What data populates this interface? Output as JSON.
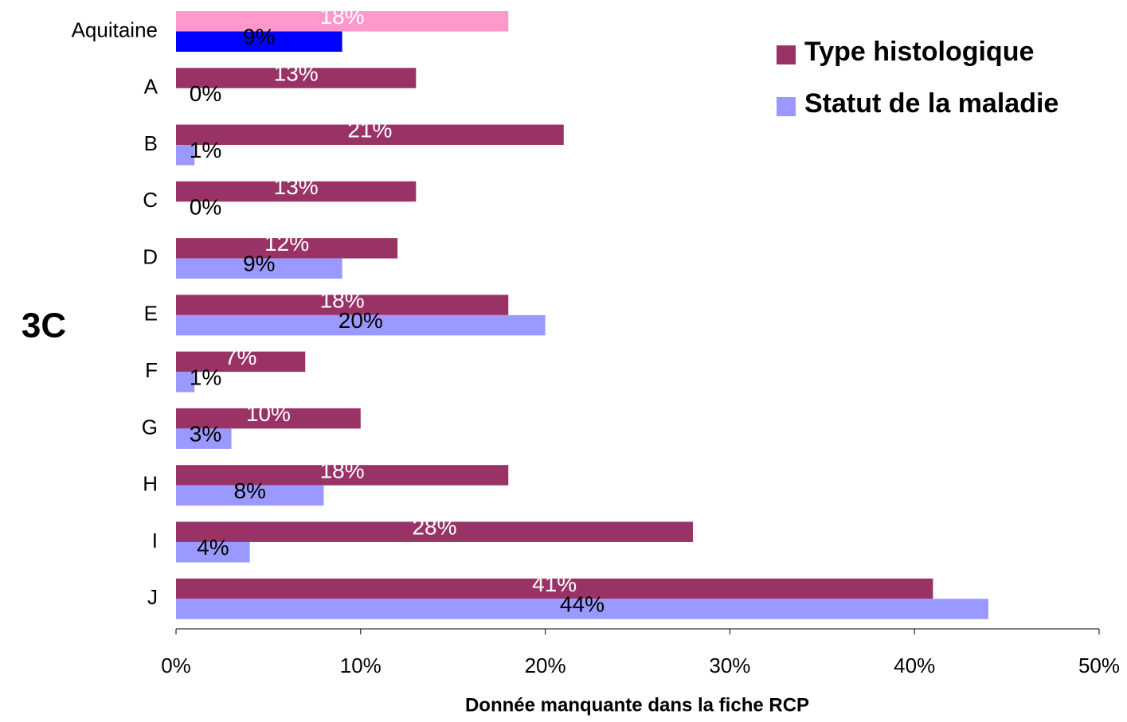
{
  "chart_data": {
    "type": "hbar",
    "annotation": "3C",
    "xlabel": "Donnée manquante dans la fiche RCP",
    "categories": [
      "Aquitaine",
      "A",
      "B",
      "C",
      "D",
      "E",
      "F",
      "G",
      "H",
      "I",
      "J"
    ],
    "series": [
      {
        "name": "Type histologique",
        "color": "#993366",
        "colors": [
          "#ff99cc",
          "#993366",
          "#993366",
          "#993366",
          "#993366",
          "#993366",
          "#993366",
          "#993366",
          "#993366",
          "#993366",
          "#993366"
        ],
        "values": [
          18,
          13,
          21,
          13,
          12,
          18,
          7,
          10,
          18,
          28,
          41
        ],
        "value_labels": [
          "18%",
          "13%",
          "21%",
          "13%",
          "12%",
          "18%",
          "7%",
          "10%",
          "18%",
          "28%",
          "41%"
        ]
      },
      {
        "name": "Statut de la maladie",
        "color": "#9999ff",
        "colors": [
          "#0000ff",
          "#9999ff",
          "#9999ff",
          "#9999ff",
          "#9999ff",
          "#9999ff",
          "#9999ff",
          "#9999ff",
          "#9999ff",
          "#9999ff",
          "#9999ff"
        ],
        "values": [
          9,
          0,
          1,
          0,
          9,
          20,
          1,
          3,
          8,
          4,
          44
        ],
        "value_labels": [
          "9%",
          "0%",
          "1%",
          "0%",
          "9%",
          "20%",
          "1%",
          "3%",
          "8%",
          "4%",
          "44%"
        ]
      }
    ],
    "xlim": [
      0,
      50
    ],
    "xticks": [
      {
        "value": 0,
        "label": "0%"
      },
      {
        "value": 10,
        "label": "10%"
      },
      {
        "value": 20,
        "label": "20%"
      },
      {
        "value": 30,
        "label": "30%"
      },
      {
        "value": 40,
        "label": "40%"
      },
      {
        "value": 50,
        "label": "50%"
      }
    ],
    "legend": "upper right"
  }
}
